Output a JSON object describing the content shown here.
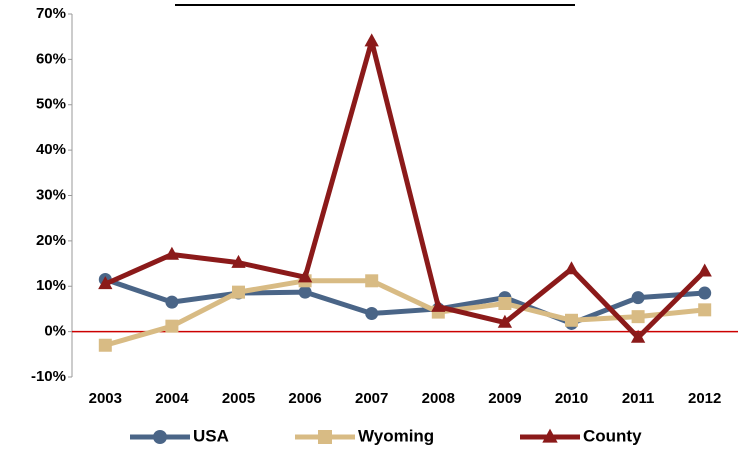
{
  "chart_data": {
    "type": "line",
    "categories": [
      "2003",
      "2004",
      "2005",
      "2006",
      "2007",
      "2008",
      "2009",
      "2010",
      "2011",
      "2012"
    ],
    "series": [
      {
        "name": "USA",
        "color": "#4a6587",
        "marker": "circle",
        "values": [
          11.5,
          6.5,
          8.5,
          8.7,
          4.0,
          5.0,
          7.5,
          1.8,
          7.5,
          8.5
        ]
      },
      {
        "name": "Wyoming",
        "color": "#d8bb84",
        "marker": "square",
        "values": [
          -3.0,
          1.2,
          8.7,
          11.2,
          11.2,
          4.3,
          6.2,
          2.5,
          3.3,
          4.8
        ]
      },
      {
        "name": "County",
        "color": "#8b1a1a",
        "marker": "triangle",
        "values": [
          10.5,
          17.0,
          15.2,
          12.0,
          64.0,
          5.5,
          2.0,
          13.8,
          -1.3,
          13.3
        ]
      }
    ],
    "ylim": [
      -10,
      70
    ],
    "yticks": [
      {
        "value": -10,
        "label": "-10%"
      },
      {
        "value": 0,
        "label": "0%"
      },
      {
        "value": 10,
        "label": "10%"
      },
      {
        "value": 20,
        "label": "20%"
      },
      {
        "value": 30,
        "label": "30%"
      },
      {
        "value": 40,
        "label": "40%"
      },
      {
        "value": 50,
        "label": "50%"
      },
      {
        "value": 60,
        "label": "60%"
      },
      {
        "value": 70,
        "label": "70%"
      }
    ],
    "zero_line_color": "#cc0000",
    "legend": "bottom"
  }
}
